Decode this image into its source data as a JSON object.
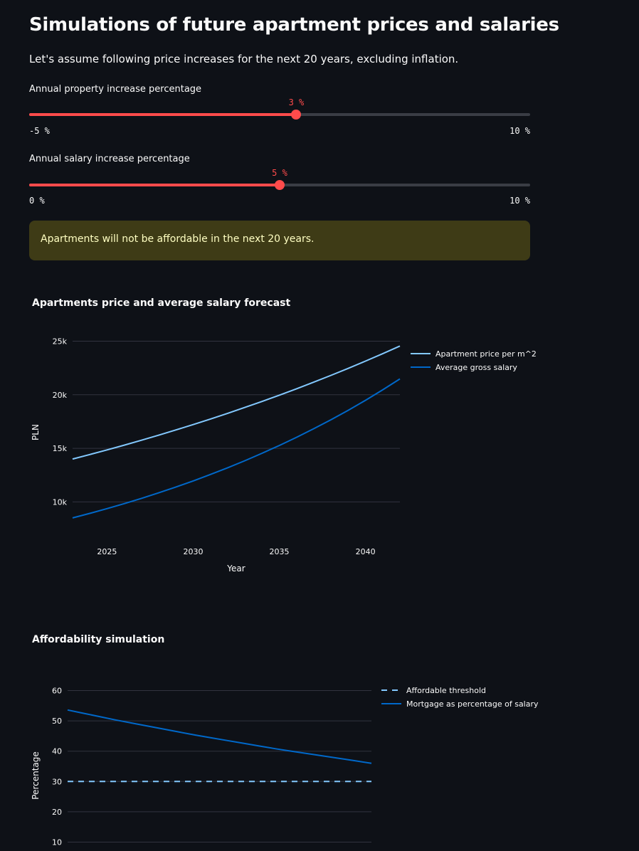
{
  "title": "Simulations of future apartment prices and salaries",
  "intro": "Let's assume following price increases for the next 20 years, excluding inflation.",
  "sliders": [
    {
      "label": "Annual property increase percentage",
      "value": 3,
      "value_label": "3 %",
      "min": -5,
      "max": 10,
      "min_label": "-5 %",
      "max_label": "10 %"
    },
    {
      "label": "Annual salary increase percentage",
      "value": 5,
      "value_label": "5 %",
      "min": 0,
      "max": 10,
      "min_label": "0 %",
      "max_label": "10 %"
    }
  ],
  "alert": "Apartments will not be affordable in the next 20 years.",
  "colors": {
    "accent": "#ff4b4b",
    "light_blue": "#83c9ff",
    "dark_blue": "#0068c9",
    "warning_bg": "#3e3b16",
    "warning_text": "#ffffc2"
  },
  "chart_data": [
    {
      "type": "line",
      "title": "Apartments price and average salary forecast",
      "xlabel": "Year",
      "ylabel": "PLN",
      "xlim": [
        2023,
        2042
      ],
      "ylim": [
        7500,
        25500
      ],
      "xticks": [
        2025,
        2030,
        2035,
        2040
      ],
      "xtick_labels": [
        "2025",
        "2030",
        "2035",
        "2040"
      ],
      "yticks": [
        10000,
        15000,
        20000,
        25000
      ],
      "ytick_labels": [
        "10k",
        "15k",
        "20k",
        "25k"
      ],
      "grid": true,
      "legend": "right",
      "x": [
        2023,
        2024,
        2025,
        2026,
        2027,
        2028,
        2029,
        2030,
        2031,
        2032,
        2033,
        2034,
        2035,
        2036,
        2037,
        2038,
        2039,
        2040,
        2041,
        2042
      ],
      "series": [
        {
          "name": "Apartment price per m^2",
          "color": "#83c9ff",
          "dash": false,
          "values": [
            14000,
            14420,
            14853,
            15298,
            15757,
            16230,
            16717,
            17218,
            17735,
            18267,
            18815,
            19379,
            19961,
            20559,
            21176,
            21812,
            22466,
            23140,
            23834,
            24549
          ]
        },
        {
          "name": "Average gross salary",
          "color": "#0068c9",
          "dash": false,
          "values": [
            8500,
            8925,
            9371,
            9840,
            10332,
            10848,
            11391,
            11960,
            12558,
            13186,
            13846,
            14538,
            15265,
            16028,
            16829,
            17671,
            18554,
            19482,
            20456,
            21479
          ]
        }
      ]
    },
    {
      "type": "line",
      "title": "Affordability simulation",
      "xlabel": "",
      "ylabel": "Percentage",
      "xlim": [
        2023,
        2042
      ],
      "ylim": [
        8,
        62
      ],
      "yticks": [
        10,
        20,
        30,
        40,
        50,
        60
      ],
      "ytick_labels": [
        "10",
        "20",
        "30",
        "40",
        "50",
        "60"
      ],
      "grid": true,
      "legend": "right",
      "x": [
        2023,
        2024,
        2025,
        2026,
        2027,
        2028,
        2029,
        2030,
        2031,
        2032,
        2033,
        2034,
        2035,
        2036,
        2037,
        2038,
        2039,
        2040,
        2041,
        2042
      ],
      "series": [
        {
          "name": "Affordable threshold",
          "color": "#83c9ff",
          "dash": true,
          "values": [
            30,
            30,
            30,
            30,
            30,
            30,
            30,
            30,
            30,
            30,
            30,
            30,
            30,
            30,
            30,
            30,
            30,
            30,
            30,
            30
          ]
        },
        {
          "name": "Mortgage as percentage of salary",
          "color": "#0068c9",
          "dash": false,
          "values": [
            53.6,
            52.5,
            51.4,
            50.3,
            49.3,
            48.3,
            47.3,
            46.3,
            45.3,
            44.4,
            43.5,
            42.6,
            41.7,
            40.8,
            40.0,
            39.2,
            38.4,
            37.6,
            36.8,
            36.0
          ]
        }
      ]
    }
  ]
}
